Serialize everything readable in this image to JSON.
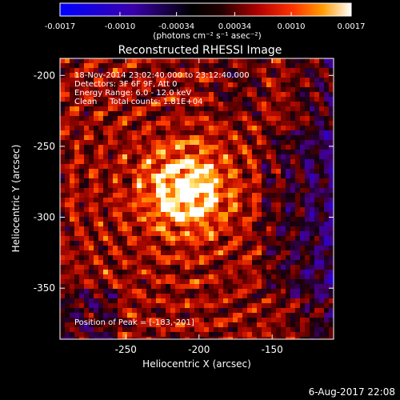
{
  "colorbar": {
    "tick_labels": [
      "-0.0017",
      "-0.0010",
      "-0.00034",
      "0.00034",
      "0.0010",
      "0.0017"
    ],
    "tick_values": [
      -0.0017,
      -0.001,
      -0.00034,
      0.00034,
      0.001,
      0.0017
    ],
    "range": [
      -0.0017,
      0.0017
    ],
    "unit_label": "(photons cm⁻² s⁻¹ asec⁻²)"
  },
  "title": "Reconstructed RHESSI Image",
  "info": {
    "line1": "18-Nov-2014 23:02:40.000 to 23:12:40.000",
    "line2": "Detectors: 3F 6F 9F, Att 0",
    "line3": "Energy Range: 6.0 - 12.0 keV",
    "line4": "Clean     Total counts: 1.81E+04",
    "peak": "Position of Peak = [-183,-201]"
  },
  "axes": {
    "xlabel": "Heliocentric X (arcsec)",
    "ylabel": "Heliocentric Y (arcsec)",
    "x_tick_labels": [
      "-250",
      "-200",
      "-150"
    ],
    "x_tick_values": [
      -250,
      -200,
      -150
    ],
    "x_range": [
      -295,
      -108
    ],
    "y_tick_labels": [
      "-200",
      "-250",
      "-300",
      "-350"
    ],
    "y_tick_values": [
      -200,
      -250,
      -300,
      -350
    ],
    "y_range": [
      -386,
      -188
    ]
  },
  "timestamp": "6-Aug-2017 22:08",
  "colors": {
    "background": "#000000",
    "cmap": [
      "#0000ff",
      "#4b0082",
      "#000000",
      "#8b0000",
      "#ff2200",
      "#ff8800",
      "#ffff88",
      "#ffffff"
    ]
  }
}
